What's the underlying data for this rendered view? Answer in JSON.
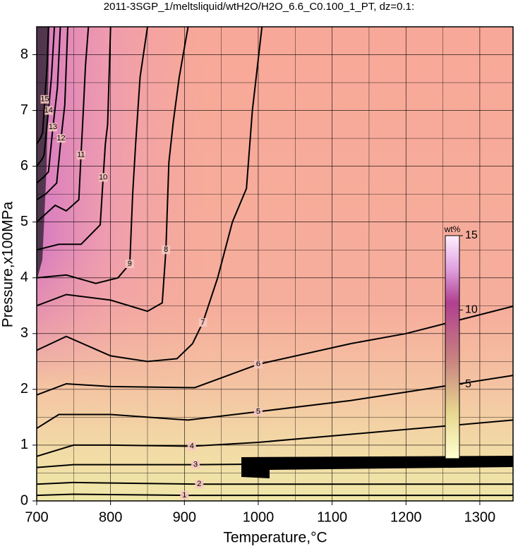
{
  "chart_data": {
    "type": "contour",
    "title": "2011-3SGP_1/meltsliquid/wtH2O/H2O_6.6_C0.100_1_PT, dz=0.1:",
    "x_label": "Temperature,°C",
    "y_label": "Pressure,x100MPa",
    "xlim": [
      700,
      1345
    ],
    "ylim": [
      0,
      8.5
    ],
    "xticks": [
      700,
      800,
      900,
      1000,
      1100,
      1200,
      1300
    ],
    "yticks": [
      0,
      1,
      2,
      3,
      4,
      5,
      6,
      7,
      8
    ],
    "grid": true,
    "line_color": "#000000",
    "contours": [
      {
        "level": 1,
        "x": [
          700,
          750,
          900,
          1130,
          1345
        ],
        "y": [
          0.1,
          0.12,
          0.1,
          0.1,
          0.1
        ]
      },
      {
        "level": 2,
        "x": [
          700,
          750,
          920,
          1345
        ],
        "y": [
          0.3,
          0.33,
          0.3,
          0.3
        ]
      },
      {
        "level": 3,
        "x": [
          700,
          750,
          915,
          1345
        ],
        "y": [
          0.6,
          0.65,
          0.65,
          0.7
        ]
      },
      {
        "level": 4,
        "x": [
          700,
          750,
          800,
          910,
          1000,
          1130,
          1345
        ],
        "y": [
          0.8,
          1.0,
          1.0,
          0.98,
          1.05,
          1.2,
          1.45
        ]
      },
      {
        "level": 5,
        "x": [
          700,
          730,
          800,
          905,
          1000,
          1125,
          1200,
          1345
        ],
        "y": [
          1.3,
          1.55,
          1.55,
          1.45,
          1.6,
          1.8,
          1.95,
          2.25
        ]
      },
      {
        "level": 6,
        "x": [
          700,
          740,
          800,
          914,
          1000,
          1125,
          1200,
          1345
        ],
        "y": [
          1.9,
          2.1,
          2.05,
          2.03,
          2.45,
          2.82,
          3.0,
          3.49
        ]
      },
      {
        "level": 7,
        "x": [
          700,
          740,
          800,
          850,
          890,
          911,
          925,
          945,
          965,
          984,
          992,
          1005
        ],
        "y": [
          2.7,
          2.95,
          2.6,
          2.5,
          2.55,
          2.82,
          3.2,
          4.0,
          5.0,
          5.6,
          7.0,
          8.5
        ]
      },
      {
        "level": 8,
        "x": [
          700,
          740,
          800,
          850,
          870,
          875,
          879,
          885,
          893,
          905
        ],
        "y": [
          3.5,
          3.7,
          3.6,
          3.4,
          3.55,
          4.5,
          6.07,
          6.8,
          7.6,
          8.5
        ]
      },
      {
        "level": 9,
        "x": [
          700,
          740,
          780,
          810,
          826,
          830,
          834,
          840,
          850
        ],
        "y": [
          4.0,
          4.05,
          3.9,
          4.0,
          4.25,
          5.5,
          6.4,
          7.6,
          8.5
        ]
      },
      {
        "level": 10,
        "x": [
          700,
          730,
          760,
          786,
          790,
          793,
          796,
          800
        ],
        "y": [
          4.5,
          4.6,
          4.6,
          4.95,
          5.8,
          6.4,
          6.75,
          8.5
        ]
      },
      {
        "level": 11,
        "x": [
          700,
          725,
          740,
          757,
          760,
          763,
          766,
          770
        ],
        "y": [
          5.0,
          5.3,
          5.2,
          5.4,
          6.2,
          6.96,
          7.8,
          8.5
        ]
      },
      {
        "level": 12,
        "x": [
          700,
          712,
          727,
          733,
          738,
          742
        ],
        "y": [
          5.4,
          5.5,
          5.7,
          6.5,
          7.1,
          8.5
        ]
      },
      {
        "level": 13,
        "x": [
          700,
          709,
          716,
          722,
          728,
          732
        ],
        "y": [
          5.7,
          5.8,
          5.9,
          6.7,
          7.4,
          8.5
        ]
      },
      {
        "level": 14,
        "x": [
          700,
          706,
          710,
          716,
          720,
          724
        ],
        "y": [
          6.0,
          6.1,
          6.2,
          7.0,
          7.6,
          8.5
        ]
      },
      {
        "level": 15,
        "x": [
          700,
          705,
          708,
          711,
          714,
          716
        ],
        "y": [
          6.4,
          6.5,
          6.6,
          7.2,
          7.8,
          8.5
        ]
      }
    ],
    "colorbar": {
      "label": "wt%",
      "lim": [
        0,
        15
      ],
      "ticks": [
        5,
        10,
        15
      ]
    }
  }
}
